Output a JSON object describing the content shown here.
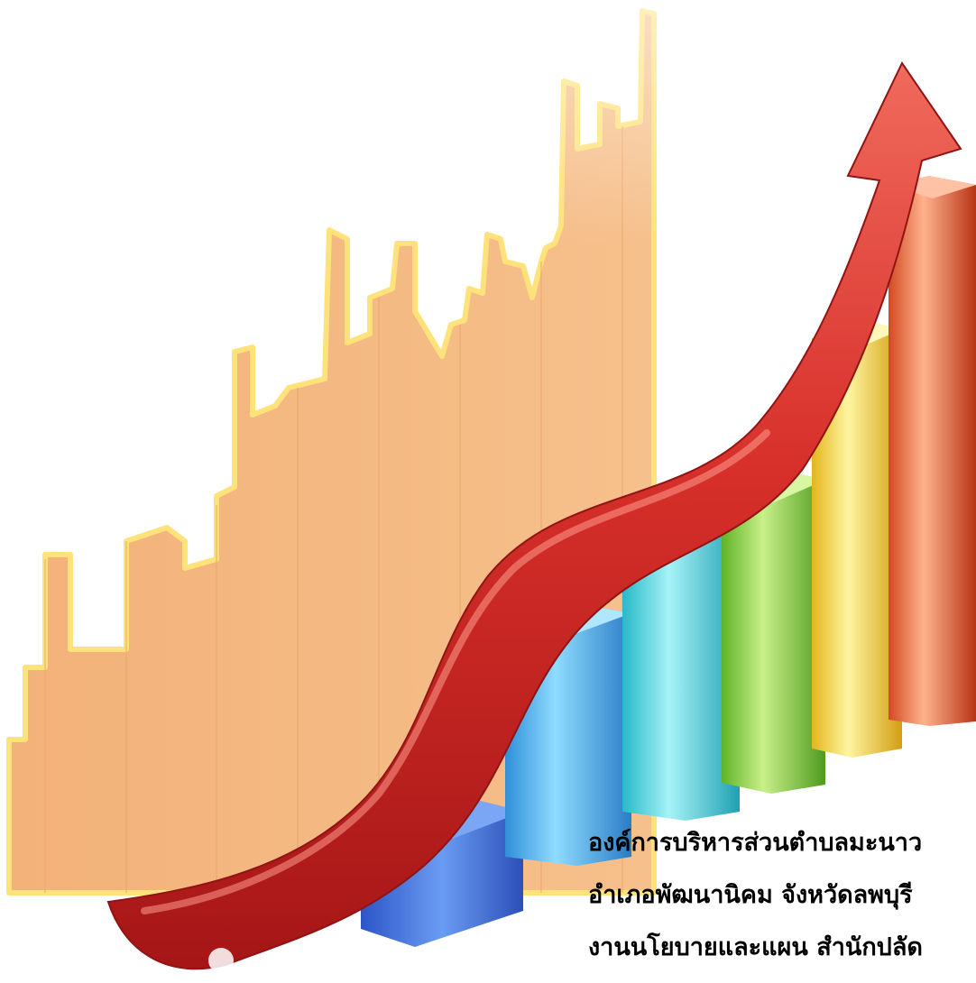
{
  "caption": {
    "line1": "องค์การบริหารส่วนตำบลมะนาว",
    "line2": "อำเภอพัฒนานิคม  จังหวัดลพบุรี",
    "line3": "งานนโยบายและแผน สำนักปลัด"
  },
  "colors": {
    "background_panel": "#f3b982",
    "panel_line": "#ffe98a",
    "arrow": "#d62e2a",
    "bar_blue_dark": "#3f6fd9",
    "bar_blue": "#3aaee8",
    "bar_cyan": "#3fd0de",
    "bar_green": "#7fcf36",
    "bar_yellow": "#f4d43a",
    "bar_orange": "#e8562c"
  }
}
